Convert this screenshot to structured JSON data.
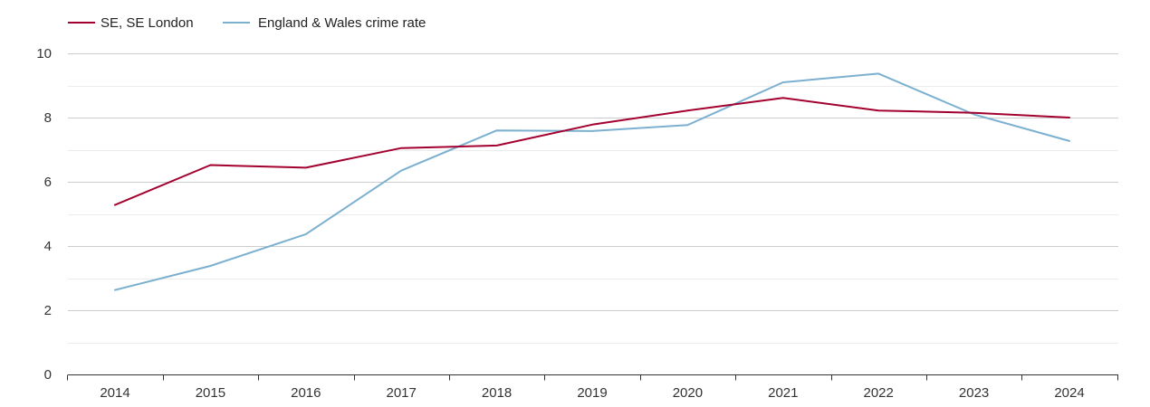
{
  "chart_data": {
    "type": "line",
    "title": "",
    "xlabel": "",
    "ylabel": "",
    "x": [
      2014,
      2015,
      2016,
      2017,
      2018,
      2019,
      2020,
      2021,
      2022,
      2023,
      2024
    ],
    "ylim": [
      0,
      10
    ],
    "y_ticks": [
      0,
      2,
      4,
      6,
      8,
      10
    ],
    "grid": true,
    "legend_position": "top-left",
    "series": [
      {
        "name": "SE, SE London",
        "color": "#a3002f",
        "values": [
          5.28,
          6.52,
          6.44,
          7.05,
          7.13,
          7.78,
          8.22,
          8.61,
          8.22,
          8.15,
          8.0
        ]
      },
      {
        "name": "England & Wales crime rate",
        "color": "#7bb0d0",
        "values": [
          2.63,
          3.38,
          4.37,
          6.35,
          7.6,
          7.58,
          7.77,
          9.1,
          9.37,
          8.1,
          7.27
        ]
      }
    ]
  }
}
